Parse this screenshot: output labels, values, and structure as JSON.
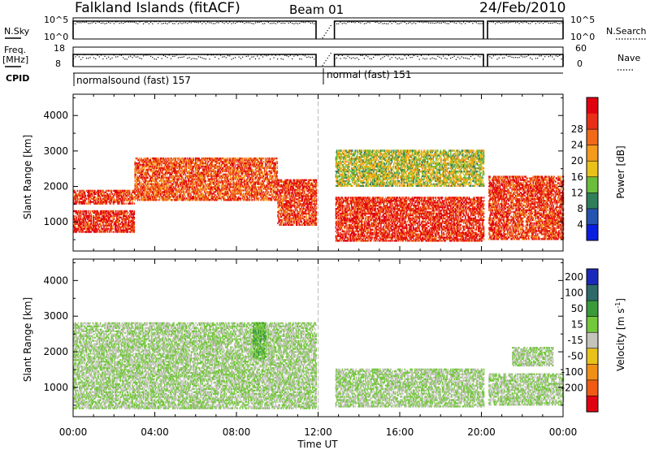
{
  "header": {
    "station": "Falkland Islands (fitACF)",
    "beam": "Beam 01",
    "date": "24/Feb/2010"
  },
  "upper_panels": {
    "nsky_label": "N.Sky",
    "nsky_ticks": [
      "10^5",
      "10^0"
    ],
    "nsearch_label": "N.Search",
    "nsearch_ticks": [
      "10^5",
      "10^0"
    ],
    "freq_label_line1": "Freq.",
    "freq_label_line2": "[MHz]",
    "freq_ticks": [
      "18",
      "8"
    ],
    "nave_label": "Nave",
    "nave_ticks": [
      "60",
      "0"
    ],
    "cpid_label": "CPID",
    "cpid_mode_1": "normalsound (fast) 157",
    "cpid_mode_2": "normal (fast) 151"
  },
  "axes": {
    "x_label": "Time UT",
    "x_ticks": [
      "00:00",
      "04:00",
      "08:00",
      "12:00",
      "16:00",
      "20:00",
      "00:00"
    ],
    "y_label": "Slant Range [km]",
    "y_ticks": [
      "1000",
      "2000",
      "3000",
      "4000"
    ]
  },
  "power_colorbar": {
    "label": "Power [dB]",
    "ticks": [
      "4",
      "8",
      "12",
      "16",
      "20",
      "24",
      "28"
    ],
    "colors": [
      "#0a1ee0",
      "#2553b0",
      "#2f7f5a",
      "#6bbe3c",
      "#e8c21a",
      "#f49a1c",
      "#f06a1a",
      "#e83018",
      "#e00010"
    ]
  },
  "velocity_colorbar": {
    "label": "Velocity [m s",
    "label_sup": "-1",
    "label_end": "]",
    "ticks": [
      "200",
      "100",
      "50",
      "15",
      "-15",
      "-50",
      "-100",
      "-200"
    ],
    "colors": [
      "#1a2ab8",
      "#2e6a6a",
      "#3a9a3a",
      "#74c83c",
      "#c4c4bc",
      "#e8c21a",
      "#f09018",
      "#f05a14",
      "#e00010"
    ]
  },
  "chart_data": [
    {
      "type": "heatmap",
      "title": "Power",
      "xlabel": "Time UT",
      "ylabel": "Slant Range [km]",
      "xlim_hours": [
        0,
        24
      ],
      "ylim": [
        180,
        4600
      ],
      "colorbar_label": "Power [dB]",
      "colorbar_range": [
        0,
        30
      ],
      "data_gaps_hours": [
        [
          11.9,
          12.8
        ],
        [
          20.1,
          20.3
        ]
      ],
      "regions": [
        {
          "t0": 0.0,
          "t1": 3.0,
          "r0": 1500,
          "r1": 1900,
          "value": 26
        },
        {
          "t0": 0.0,
          "t1": 3.0,
          "r0": 700,
          "r1": 1300,
          "value": 27
        },
        {
          "t0": 3.0,
          "t1": 10.0,
          "r0": 1600,
          "r1": 2800,
          "value": 24
        },
        {
          "t0": 10.0,
          "t1": 11.9,
          "r0": 900,
          "r1": 2200,
          "value": 26
        },
        {
          "t0": 12.8,
          "t1": 20.1,
          "r0": 450,
          "r1": 1700,
          "value": 27
        },
        {
          "t0": 20.3,
          "t1": 24.0,
          "r0": 500,
          "r1": 2300,
          "value": 26
        },
        {
          "t0": 12.8,
          "t1": 20.1,
          "r0": 2000,
          "r1": 3000,
          "value": 14
        }
      ]
    },
    {
      "type": "heatmap",
      "title": "Velocity",
      "xlabel": "Time UT",
      "ylabel": "Slant Range [km]",
      "xlim_hours": [
        0,
        24
      ],
      "ylim": [
        180,
        4600
      ],
      "colorbar_label": "Velocity [m s-1]",
      "colorbar_range": [
        -250,
        250
      ],
      "data_gaps_hours": [
        [
          11.9,
          12.8
        ],
        [
          20.1,
          20.3
        ]
      ],
      "regions": [
        {
          "t0": 0.0,
          "t1": 11.9,
          "r0": 400,
          "r1": 2800,
          "value": 0
        },
        {
          "t0": 8.8,
          "t1": 9.4,
          "r0": 1800,
          "r1": 2800,
          "value": 30
        },
        {
          "t0": 12.8,
          "t1": 20.1,
          "r0": 450,
          "r1": 1500,
          "value": 0
        },
        {
          "t0": 20.3,
          "t1": 24.0,
          "r0": 500,
          "r1": 1400,
          "value": 0
        },
        {
          "t0": 21.5,
          "t1": 23.5,
          "r0": 1600,
          "r1": 2100,
          "value": 0
        }
      ]
    }
  ]
}
